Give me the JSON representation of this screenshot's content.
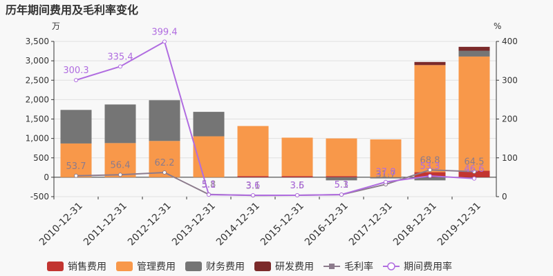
{
  "chart_data": {
    "type": "bar",
    "title": "历年期间费用及毛利率变化",
    "y_left_unit": "万",
    "y_right_unit": "%",
    "y_left_range": [
      -500,
      3500
    ],
    "y_left_ticks": [
      "-500",
      "0",
      "500",
      "1,000",
      "1,500",
      "2,000",
      "2,500",
      "3,000",
      "3,500"
    ],
    "y_right_range": [
      0,
      400
    ],
    "y_right_ticks": [
      "0",
      "100",
      "200",
      "300",
      "400"
    ],
    "categories": [
      "2010-12-31",
      "2011-12-31",
      "2012-12-31",
      "2013-12-31",
      "2014-12-31",
      "2015-12-31",
      "2016-12-31",
      "2017-12-31",
      "2018-12-31",
      "2019-12-31"
    ],
    "grid": true,
    "legend_position": "bottom",
    "series": [
      {
        "name": "销售费用",
        "kind": "bar",
        "color": "#c23531",
        "values": [
          0,
          0,
          0,
          0,
          30,
          30,
          30,
          0,
          130,
          170
        ]
      },
      {
        "name": "管理费用",
        "kind": "bar",
        "color": "#f8984a",
        "values": [
          870,
          880,
          935,
          1055,
          1290,
          990,
          970,
          975,
          2760,
          2940
        ]
      },
      {
        "name": "财务费用",
        "kind": "bar",
        "color": "#757575",
        "values": [
          865,
          995,
          1050,
          630,
          0,
          0,
          -80,
          -30,
          -80,
          150
        ]
      },
      {
        "name": "研发费用",
        "kind": "bar",
        "color": "#7b2a2a",
        "values": [
          0,
          0,
          0,
          0,
          0,
          0,
          0,
          0,
          80,
          100
        ]
      },
      {
        "name": "毛利率",
        "kind": "line",
        "color": "#8c7b8c",
        "values": [
          53.7,
          56.4,
          62.2,
          5.8,
          3.1,
          3.5,
          5.1,
          31.7,
          68.8,
          64.5
        ]
      },
      {
        "name": "期间费用率",
        "kind": "line",
        "color": "#b06ce0",
        "values": [
          300.3,
          335.4,
          399.4,
          5.1,
          3.6,
          3.6,
          5.3,
          37.8,
          53.3,
          46.6
        ]
      }
    ],
    "line_labels": {
      "毛利率": [
        "53.7",
        "56.4",
        "62.2",
        "5.8",
        "3.1",
        "3.5",
        "5.1",
        "31.7",
        "68.8",
        "64.5"
      ],
      "期间费用率": [
        "300.3",
        "335.4",
        "399.4",
        "5.1",
        "3.6",
        "3.6",
        "5.3",
        "37.8",
        "53.3",
        "46.6"
      ]
    }
  }
}
